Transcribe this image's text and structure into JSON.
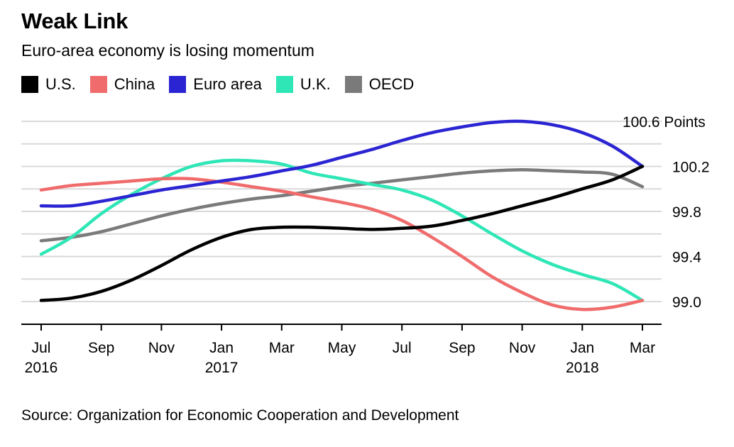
{
  "title": "Weak Link",
  "subtitle": "Euro-area economy is losing momentum",
  "source": "Source: Organization for Economic Cooperation and Development",
  "chart_data": {
    "type": "line",
    "x": [
      "Jul 2016",
      "Aug 2016",
      "Sep 2016",
      "Oct 2016",
      "Nov 2016",
      "Dec 2016",
      "Jan 2017",
      "Feb 2017",
      "Mar 2017",
      "Apr 2017",
      "May 2017",
      "Jun 2017",
      "Jul 2017",
      "Aug 2017",
      "Sep 2017",
      "Oct 2017",
      "Nov 2017",
      "Dec 2017",
      "Jan 2018",
      "Feb 2018",
      "Mar 2018"
    ],
    "x_ticks": [
      {
        "index": 0,
        "label": "Jul",
        "year": "2016"
      },
      {
        "index": 2,
        "label": "Sep",
        "year": ""
      },
      {
        "index": 4,
        "label": "Nov",
        "year": ""
      },
      {
        "index": 6,
        "label": "Jan",
        "year": "2017"
      },
      {
        "index": 8,
        "label": "Mar",
        "year": ""
      },
      {
        "index": 10,
        "label": "May",
        "year": ""
      },
      {
        "index": 12,
        "label": "Jul",
        "year": ""
      },
      {
        "index": 14,
        "label": "Sep",
        "year": ""
      },
      {
        "index": 16,
        "label": "Nov",
        "year": ""
      },
      {
        "index": 18,
        "label": "Jan",
        "year": "2018"
      },
      {
        "index": 20,
        "label": "Mar",
        "year": ""
      }
    ],
    "y_ticks": [
      {
        "value": 100.6,
        "label": "100.6 Points"
      },
      {
        "value": 100.2,
        "label": "100.2"
      },
      {
        "value": 99.8,
        "label": "99.8"
      },
      {
        "value": 99.4,
        "label": "99.4"
      },
      {
        "value": 99.0,
        "label": "99.0"
      }
    ],
    "ylim": [
      98.9,
      100.6
    ],
    "grid": true,
    "legend_position": "top",
    "series": [
      {
        "name": "U.S.",
        "color": "#000000",
        "values": [
          99.01,
          99.03,
          99.09,
          99.19,
          99.32,
          99.46,
          99.57,
          99.64,
          99.66,
          99.66,
          99.65,
          99.64,
          99.65,
          99.67,
          99.72,
          99.78,
          99.85,
          99.92,
          100.0,
          100.08,
          100.2
        ]
      },
      {
        "name": "China",
        "color": "#f06c6c",
        "values": [
          99.99,
          100.03,
          100.05,
          100.07,
          100.09,
          100.09,
          100.06,
          100.02,
          99.98,
          99.93,
          99.88,
          99.82,
          99.72,
          99.57,
          99.4,
          99.22,
          99.08,
          98.97,
          98.93,
          98.95,
          99.01
        ]
      },
      {
        "name": "Euro area",
        "color": "#2a24d2",
        "values": [
          99.85,
          99.85,
          99.89,
          99.94,
          99.99,
          100.03,
          100.07,
          100.11,
          100.16,
          100.21,
          100.28,
          100.35,
          100.43,
          100.5,
          100.55,
          100.59,
          100.6,
          100.57,
          100.5,
          100.38,
          100.2
        ]
      },
      {
        "name": "U.K.",
        "color": "#2ee6b6",
        "values": [
          99.42,
          99.57,
          99.78,
          99.95,
          100.09,
          100.2,
          100.25,
          100.25,
          100.22,
          100.14,
          100.09,
          100.04,
          99.99,
          99.9,
          99.76,
          99.6,
          99.45,
          99.33,
          99.24,
          99.16,
          99.01
        ]
      },
      {
        "name": "OECD",
        "color": "#7a7a7a",
        "values": [
          99.54,
          99.57,
          99.62,
          99.69,
          99.76,
          99.82,
          99.87,
          99.91,
          99.94,
          99.98,
          100.02,
          100.05,
          100.08,
          100.11,
          100.14,
          100.16,
          100.17,
          100.16,
          100.15,
          100.13,
          100.02
        ]
      }
    ]
  }
}
